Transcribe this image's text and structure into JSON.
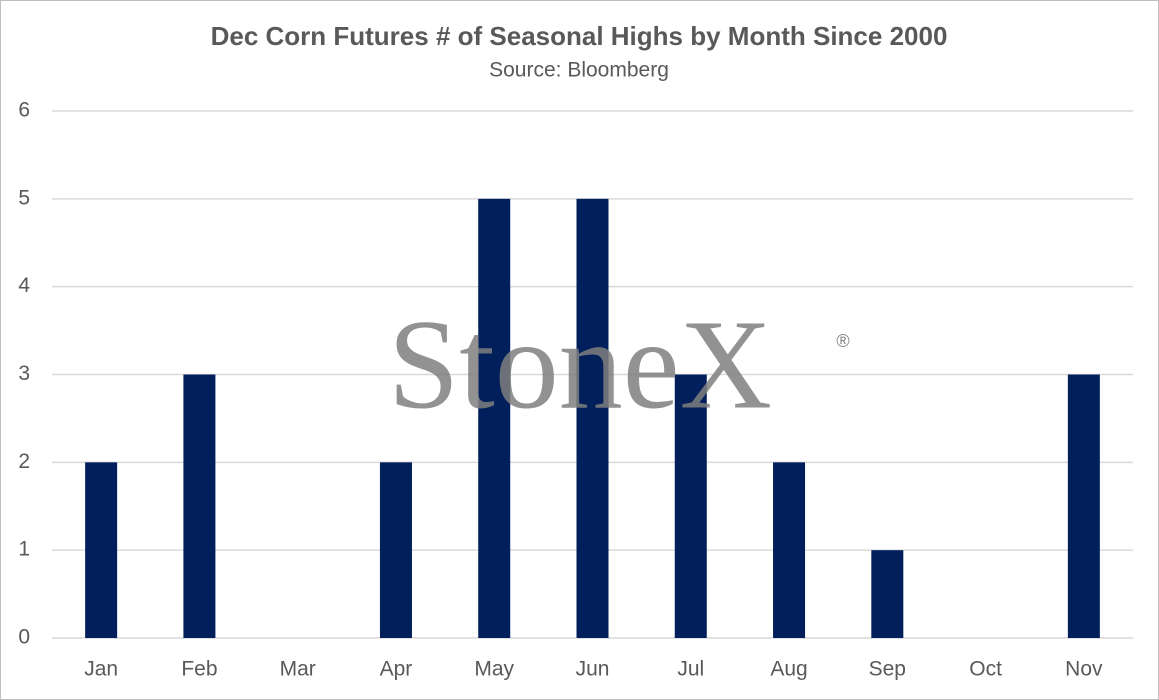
{
  "chart_data": {
    "type": "bar",
    "title": "Dec Corn Futures # of Seasonal Highs by Month Since 2000",
    "subtitle": "Source: Bloomberg",
    "watermark": "StoneX",
    "watermark_symbol": "®",
    "categories": [
      "Jan",
      "Feb",
      "Mar",
      "Apr",
      "May",
      "Jun",
      "Jul",
      "Aug",
      "Sep",
      "Oct",
      "Nov"
    ],
    "values": [
      2,
      3,
      0,
      2,
      5,
      5,
      3,
      2,
      1,
      0,
      3
    ],
    "color": "#001f5b",
    "ylim": [
      0,
      6
    ],
    "yticks": [
      0,
      1,
      2,
      3,
      4,
      5,
      6
    ],
    "grid": true
  }
}
